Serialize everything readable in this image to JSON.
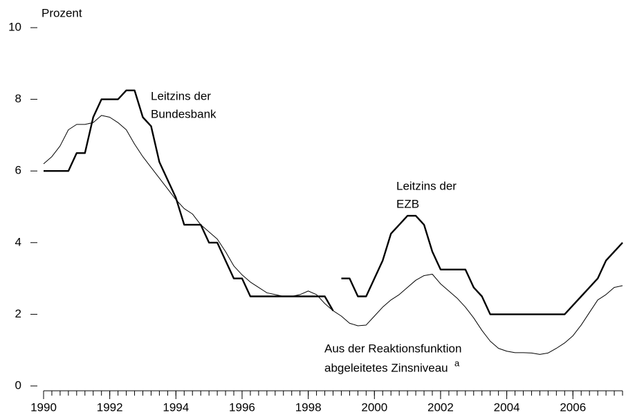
{
  "chart_data": {
    "type": "line",
    "y_label": "Prozent",
    "annotations": {
      "bundesbank": [
        "Leitzins der",
        "Bundesbank"
      ],
      "ezb": [
        "Leitzins der",
        "EZB"
      ],
      "reaktion": [
        "Aus der Reaktionsfunktion",
        "abgeleitetes Zinsniveau"
      ],
      "footnote": "a"
    },
    "x": [
      1990,
      1990.25,
      1990.5,
      1990.75,
      1991,
      1991.25,
      1991.5,
      1991.75,
      1992,
      1992.25,
      1992.5,
      1992.75,
      1993,
      1993.25,
      1993.5,
      1993.75,
      1994,
      1994.25,
      1994.5,
      1994.75,
      1995,
      1995.25,
      1995.5,
      1995.75,
      1996,
      1996.25,
      1996.5,
      1996.75,
      1997,
      1997.25,
      1997.5,
      1997.75,
      1998,
      1998.25,
      1998.5,
      1998.75,
      1999,
      1999.25,
      1999.5,
      1999.75,
      2000,
      2000.25,
      2000.5,
      2000.75,
      2001,
      2001.25,
      2001.5,
      2001.75,
      2002,
      2002.25,
      2002.5,
      2002.75,
      2003,
      2003.25,
      2003.5,
      2003.75,
      2004,
      2004.25,
      2004.5,
      2004.75,
      2005,
      2005.25,
      2005.5,
      2005.75,
      2006,
      2006.25,
      2006.5,
      2006.75,
      2007,
      2007.25,
      2007.5
    ],
    "series": [
      {
        "name": "Leitzins der Bundesbank",
        "color": "#000000",
        "width": 2.4,
        "values": [
          6,
          6,
          6,
          6,
          6.5,
          6.5,
          7.5,
          8,
          8,
          8,
          8.25,
          8.25,
          7.5,
          7.25,
          6.25,
          5.75,
          5.25,
          4.5,
          4.5,
          4.5,
          4,
          4,
          3.5,
          3,
          3,
          2.5,
          2.5,
          2.5,
          2.5,
          2.5,
          2.5,
          2.5,
          2.5,
          2.5,
          2.5,
          2.1,
          null,
          null,
          null,
          null,
          null,
          null,
          null,
          null,
          null,
          null,
          null,
          null,
          null,
          null,
          null,
          null,
          null,
          null,
          null,
          null,
          null,
          null,
          null,
          null,
          null,
          null,
          null,
          null,
          null,
          null,
          null,
          null,
          null,
          null,
          null
        ]
      },
      {
        "name": "Leitzins der EZB",
        "color": "#000000",
        "width": 2.4,
        "values": [
          null,
          null,
          null,
          null,
          null,
          null,
          null,
          null,
          null,
          null,
          null,
          null,
          null,
          null,
          null,
          null,
          null,
          null,
          null,
          null,
          null,
          null,
          null,
          null,
          null,
          null,
          null,
          null,
          null,
          null,
          null,
          null,
          null,
          null,
          null,
          null,
          3,
          3,
          2.5,
          2.5,
          3,
          3.5,
          4.25,
          4.5,
          4.75,
          4.75,
          4.5,
          3.75,
          3.25,
          3.25,
          3.25,
          3.25,
          2.75,
          2.5,
          2,
          2,
          2,
          2,
          2,
          2,
          2,
          2,
          2,
          2,
          2.25,
          2.5,
          2.75,
          3,
          3.5,
          3.75,
          4
        ]
      },
      {
        "name": "Aus der Reaktionsfunktion abgeleitetes Zinsniveau",
        "color": "#000000",
        "width": 1,
        "values": [
          6.2,
          6.4,
          6.7,
          7.15,
          7.3,
          7.3,
          7.35,
          7.55,
          7.5,
          7.35,
          7.15,
          6.75,
          6.4,
          6.1,
          5.8,
          5.5,
          5.2,
          4.95,
          4.8,
          4.5,
          4.3,
          4.1,
          3.75,
          3.35,
          3.1,
          2.9,
          2.75,
          2.6,
          2.55,
          2.5,
          2.5,
          2.55,
          2.65,
          2.55,
          2.3,
          2.1,
          1.95,
          1.75,
          1.68,
          1.7,
          1.95,
          2.2,
          2.4,
          2.55,
          2.75,
          2.95,
          3.08,
          3.12,
          2.85,
          2.65,
          2.45,
          2.2,
          1.9,
          1.55,
          1.25,
          1.05,
          0.97,
          0.93,
          0.93,
          0.92,
          0.88,
          0.92,
          1.05,
          1.2,
          1.4,
          1.7,
          2.05,
          2.4,
          2.55,
          2.75,
          2.8
        ]
      }
    ],
    "xlim": [
      1990,
      2007.5
    ],
    "xticks": [
      1990,
      1992,
      1994,
      1996,
      1998,
      2000,
      2002,
      2004,
      2006
    ],
    "ylim": [
      0,
      10
    ],
    "yticks": [
      0,
      2,
      4,
      6,
      8,
      10
    ],
    "grid": false
  }
}
